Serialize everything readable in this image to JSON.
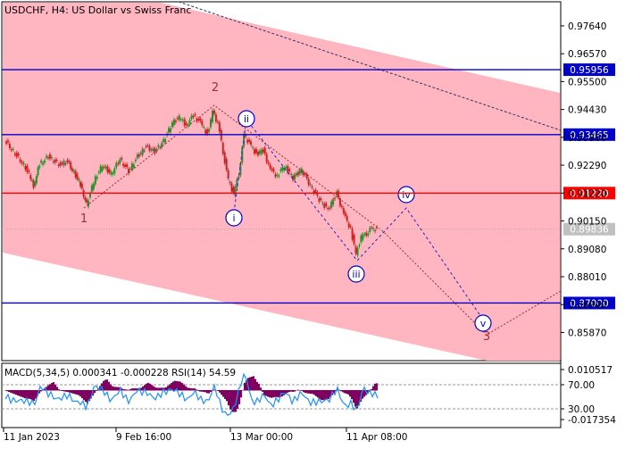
{
  "header": {
    "symbol": "USDCHF",
    "timeframe": "H4",
    "description": "US Dollar vs Swiss Franc"
  },
  "chart_data": [
    {
      "type": "candlestick",
      "symbol": "USDCHF, H4",
      "title": "US Dollar vs Swiss Franc",
      "ylim": [
        0.852,
        0.9822
      ],
      "y_ticks": [
        "0.97640",
        "0.96570",
        "0.95500",
        "0.94430",
        "0.93360",
        "0.92290",
        "0.91220",
        "0.90150",
        "0.89080",
        "0.88010",
        "0.86940",
        "0.85870"
      ],
      "x_ticks": [
        "11 Jan 2023",
        "9 Feb 16:00",
        "13 Mar 00:00",
        "11 Apr 08:00"
      ],
      "last_price": "0.89836",
      "price_series": [
        {
          "t": 0,
          "p": 0.9325
        },
        {
          "t": 10,
          "p": 0.9282
        },
        {
          "t": 20,
          "p": 0.924
        },
        {
          "t": 28,
          "p": 0.9195
        },
        {
          "t": 33,
          "p": 0.9148
        },
        {
          "t": 40,
          "p": 0.9232
        },
        {
          "t": 50,
          "p": 0.9262
        },
        {
          "t": 62,
          "p": 0.9232
        },
        {
          "t": 72,
          "p": 0.9242
        },
        {
          "t": 85,
          "p": 0.9168
        },
        {
          "t": 94,
          "p": 0.9078
        },
        {
          "t": 102,
          "p": 0.9165
        },
        {
          "t": 112,
          "p": 0.923
        },
        {
          "t": 122,
          "p": 0.9195
        },
        {
          "t": 132,
          "p": 0.9252
        },
        {
          "t": 142,
          "p": 0.9205
        },
        {
          "t": 152,
          "p": 0.9262
        },
        {
          "t": 162,
          "p": 0.93
        },
        {
          "t": 172,
          "p": 0.9282
        },
        {
          "t": 182,
          "p": 0.9322
        },
        {
          "t": 192,
          "p": 0.9392
        },
        {
          "t": 200,
          "p": 0.9412
        },
        {
          "t": 208,
          "p": 0.9382
        },
        {
          "t": 216,
          "p": 0.9422
        },
        {
          "t": 224,
          "p": 0.9392
        },
        {
          "t": 232,
          "p": 0.9348
        },
        {
          "t": 238,
          "p": 0.9432
        },
        {
          "t": 244,
          "p": 0.9392
        },
        {
          "t": 250,
          "p": 0.9282
        },
        {
          "t": 256,
          "p": 0.9172
        },
        {
          "t": 262,
          "p": 0.912
        },
        {
          "t": 268,
          "p": 0.9195
        },
        {
          "t": 274,
          "p": 0.9345
        },
        {
          "t": 280,
          "p": 0.9315
        },
        {
          "t": 288,
          "p": 0.9272
        },
        {
          "t": 296,
          "p": 0.9288
        },
        {
          "t": 304,
          "p": 0.9212
        },
        {
          "t": 312,
          "p": 0.9188
        },
        {
          "t": 320,
          "p": 0.9228
        },
        {
          "t": 330,
          "p": 0.9182
        },
        {
          "t": 340,
          "p": 0.9212
        },
        {
          "t": 350,
          "p": 0.915
        },
        {
          "t": 360,
          "p": 0.9098
        },
        {
          "t": 370,
          "p": 0.9058
        },
        {
          "t": 380,
          "p": 0.9122
        },
        {
          "t": 388,
          "p": 0.9042
        },
        {
          "t": 396,
          "p": 0.8985
        },
        {
          "t": 402,
          "p": 0.8888
        },
        {
          "t": 408,
          "p": 0.8952
        },
        {
          "t": 414,
          "p": 0.8968
        },
        {
          "t": 420,
          "p": 0.8988
        },
        {
          "t": 426,
          "p": 0.8982
        }
      ],
      "horizontal_levels": [
        {
          "value": 0.95956,
          "label": "0.95956",
          "color": "#0000cc"
        },
        {
          "value": 0.93465,
          "label": "0.93465",
          "color": "#0000cc"
        },
        {
          "value": 0.9122,
          "label": "0.91220",
          "color": "#ff0000"
        },
        {
          "value": 0.87,
          "label": "0.87000",
          "color": "#0000cc"
        }
      ],
      "wave_labels": [
        {
          "label": "1",
          "style": "plain",
          "color": "#993333"
        },
        {
          "label": "2",
          "style": "plain",
          "color": "#993333"
        },
        {
          "label": "3",
          "style": "plain",
          "color": "#993333"
        },
        {
          "label": "i",
          "style": "circle",
          "color": "#0000cc"
        },
        {
          "label": "ii",
          "style": "circle",
          "color": "#0000cc"
        },
        {
          "label": "iii",
          "style": "circle",
          "color": "#0000cc"
        },
        {
          "label": "iv",
          "style": "circle",
          "color": "#0000cc"
        },
        {
          "label": "v",
          "style": "circle",
          "color": "#0000cc"
        }
      ],
      "channel_color": "#ffb6c1",
      "colors": {
        "bull": "#2e8b2e",
        "bear": "#cc2222"
      }
    },
    {
      "type": "line",
      "title": "MACD(5,34,5) 0.000341 -0.000228 RSI(14) 54.59",
      "indicators": [
        "MACD(5,34,5)",
        "RSI(14)"
      ],
      "macd_main": "0.000341",
      "macd_signal": "-0.000228",
      "rsi_value": "54.59",
      "y_ticks_left": [
        "0.010517",
        "-0.017354"
      ],
      "rsi_levels": [
        "70.00",
        "30.00"
      ],
      "colors": {
        "histogram": "#800060",
        "rsi": "#1e90ff"
      }
    }
  ]
}
